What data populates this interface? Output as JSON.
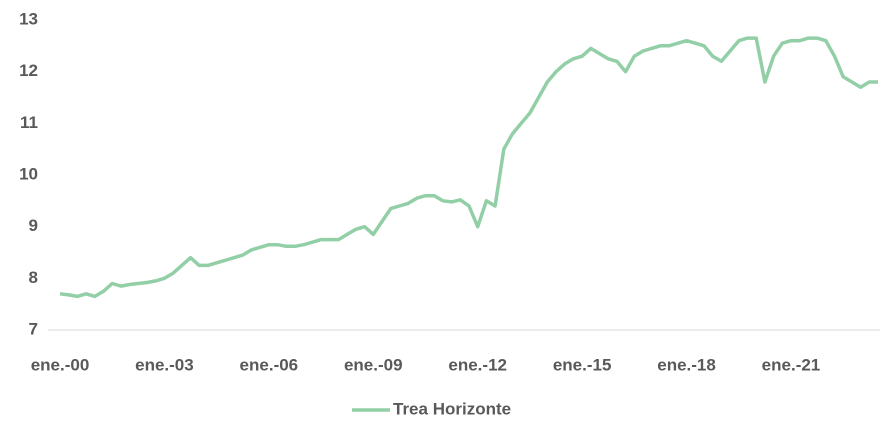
{
  "chart_data": {
    "type": "line",
    "categories": [
      "ene.-00",
      null,
      null,
      null,
      null,
      null,
      null,
      null,
      null,
      null,
      null,
      null,
      "ene.-03",
      null,
      null,
      null,
      null,
      null,
      null,
      null,
      null,
      null,
      null,
      null,
      "ene.-06",
      null,
      null,
      null,
      null,
      null,
      null,
      null,
      null,
      null,
      null,
      null,
      "ene.-09",
      null,
      null,
      null,
      null,
      null,
      null,
      null,
      null,
      null,
      null,
      null,
      "ene.-12",
      null,
      null,
      null,
      null,
      null,
      null,
      null,
      null,
      null,
      null,
      null,
      "ene.-15",
      null,
      null,
      null,
      null,
      null,
      null,
      null,
      null,
      null,
      null,
      null,
      "ene.-18",
      null,
      null,
      null,
      null,
      null,
      null,
      null,
      null,
      null,
      null,
      null,
      "ene.-21",
      null,
      null,
      null,
      null,
      null,
      null,
      null,
      null,
      null,
      null
    ],
    "series": [
      {
        "name": "Trea Horizonte",
        "color": "#93cfa6",
        "values": [
          7.7,
          7.68,
          7.65,
          7.7,
          7.65,
          7.75,
          7.9,
          7.85,
          7.88,
          7.9,
          7.92,
          7.95,
          8.0,
          8.1,
          8.25,
          8.4,
          8.25,
          8.25,
          8.3,
          8.35,
          8.4,
          8.45,
          8.55,
          8.6,
          8.65,
          8.65,
          8.62,
          8.62,
          8.65,
          8.7,
          8.75,
          8.75,
          8.75,
          8.85,
          8.95,
          9.0,
          8.85,
          9.1,
          9.35,
          9.4,
          9.45,
          9.55,
          9.6,
          9.6,
          9.5,
          9.48,
          9.52,
          9.4,
          9.0,
          9.5,
          9.4,
          10.5,
          10.8,
          11.0,
          11.2,
          11.5,
          11.8,
          12.0,
          12.15,
          12.25,
          12.3,
          12.45,
          12.35,
          12.25,
          12.2,
          12.0,
          12.3,
          12.4,
          12.45,
          12.5,
          12.5,
          12.55,
          12.6,
          12.55,
          12.5,
          12.3,
          12.2,
          12.4,
          12.6,
          12.65,
          12.65,
          11.8,
          12.3,
          12.55,
          12.6,
          12.6,
          12.65,
          12.65,
          12.6,
          12.3,
          11.9,
          11.8,
          11.7,
          11.8,
          11.8
        ]
      }
    ],
    "ylim": [
      7,
      13
    ],
    "yticks": [
      7,
      8,
      9,
      10,
      11,
      12,
      13
    ],
    "grid": false,
    "legend": "bottom"
  }
}
